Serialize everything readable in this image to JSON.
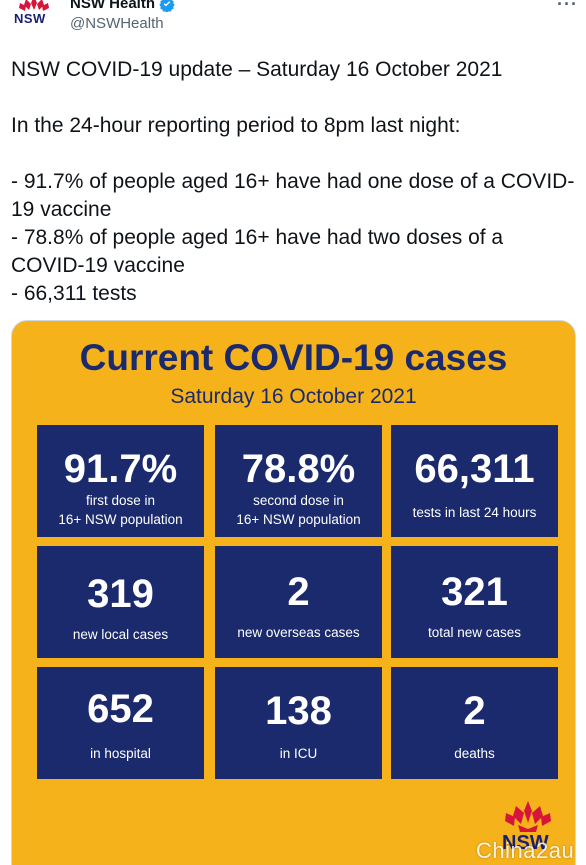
{
  "account": {
    "display_name": "NSW Health",
    "handle": "@NSWHealth",
    "avatar_text": "NSW",
    "more_label": "···"
  },
  "tweet": {
    "text": "NSW COVID-19 update – Saturday 16 October 2021\n\nIn the 24-hour reporting period to 8pm last night:\n\n- 91.7% of people aged 16+ have had one dose of a COVID-19 vaccine\n- 78.8% of people aged 16+ have had two doses of a COVID-19 vaccine\n- 66,311 tests"
  },
  "media": {
    "title": "Current COVID-19 cases",
    "date": "Saturday 16 October 2021",
    "tiles": [
      {
        "value": "91.7%",
        "label": "first dose in\n16+ NSW population"
      },
      {
        "value": "78.8%",
        "label": "second dose in\n16+ NSW population"
      },
      {
        "value": "66,311",
        "label": "tests in last 24 hours"
      },
      {
        "value": "319",
        "label": "new local cases"
      },
      {
        "value": "2",
        "label": "new overseas cases"
      },
      {
        "value": "321",
        "label": "total new cases"
      },
      {
        "value": "652",
        "label": "in hospital"
      },
      {
        "value": "138",
        "label": "in ICU"
      },
      {
        "value": "2",
        "label": "deaths"
      }
    ],
    "logo_text": "NSW",
    "colors": {
      "background": "#f5b21b",
      "tile": "#1a2a6c",
      "waratah": "#d7153a"
    }
  },
  "watermark": "Chinа2au"
}
